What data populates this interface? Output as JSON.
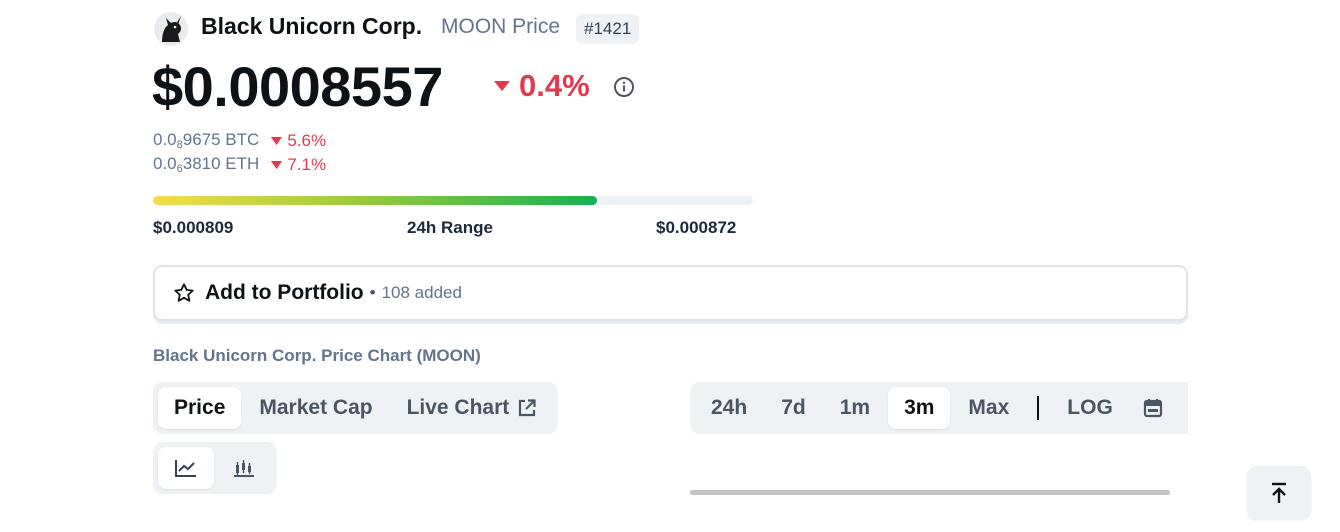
{
  "coin": {
    "name": "Black Unicorn Corp.",
    "subtitle": "MOON Price",
    "rank": "#1421",
    "price": "$0.0008557",
    "change_24h": "0.4%",
    "btc": {
      "prefix": "0.0",
      "sub": "8",
      "rest": "9675 BTC",
      "change": "5.6%"
    },
    "eth": {
      "prefix": "0.0",
      "sub": "6",
      "rest": "3810 ETH",
      "change": "7.1%"
    }
  },
  "range": {
    "low": "$0.000809",
    "label": "24h Range",
    "high": "$0.000872",
    "fill_percent": 74
  },
  "portfolio": {
    "label": "Add to Portfolio",
    "separator": "•",
    "count": "108 added"
  },
  "chart": {
    "title": "Black Unicorn Corp. Price Chart (MOON)",
    "data_tabs": [
      {
        "label": "Price",
        "active": true
      },
      {
        "label": "Market Cap",
        "active": false
      },
      {
        "label": "Live Chart",
        "active": false
      }
    ],
    "time_tabs": [
      {
        "label": "24h",
        "active": false
      },
      {
        "label": "7d",
        "active": false
      },
      {
        "label": "1m",
        "active": false
      },
      {
        "label": "3m",
        "active": true
      },
      {
        "label": "Max",
        "active": false
      },
      {
        "label": "LOG",
        "active": false
      }
    ],
    "view_modes": [
      "line-chart-icon",
      "candlestick-icon"
    ],
    "active_view": "line-chart-icon"
  },
  "colors": {
    "negative": "#e4384d",
    "text": "#0d1217",
    "muted": "#64748b",
    "tab_bg": "#eff2f5"
  },
  "icons": {
    "logo": "unicorn-logo",
    "info": "info-icon",
    "star": "star-icon",
    "external": "external-link-icon",
    "calendar": "calendar-icon",
    "back_to_top": "arrow-up-icon"
  }
}
